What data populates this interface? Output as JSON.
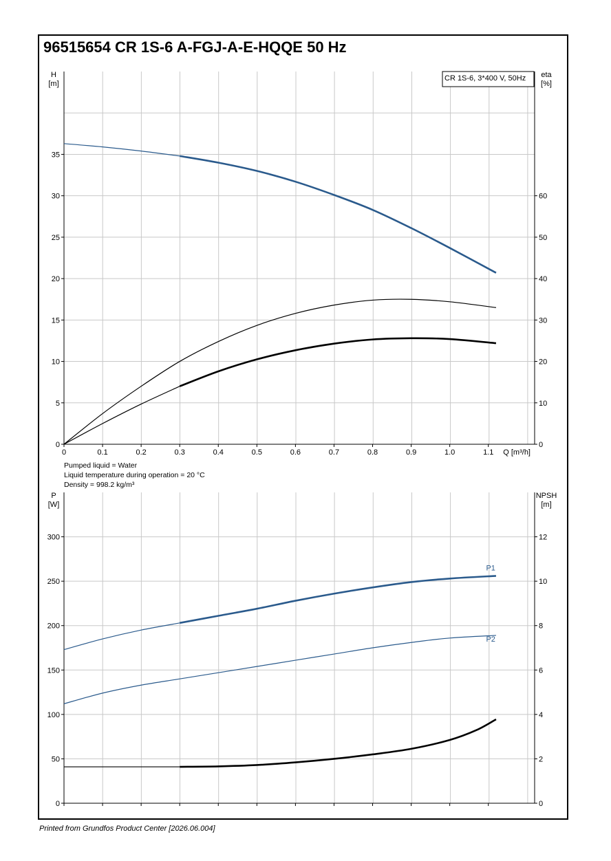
{
  "header": {
    "title": "96515654 CR 1S-6 A-FGJ-A-E-HQQE 50 Hz"
  },
  "notes": {
    "line1": "Pumped liquid = Water",
    "line2": "Liquid temperature during operation = 20 °C",
    "line3": "Density = 998.2 kg/m³"
  },
  "footer": {
    "text": "Printed from Grundfos Product Center [2026.06.004]"
  },
  "colors": {
    "blue": "#2a5a8c",
    "black": "#000000",
    "grid": "#c8c8c8"
  },
  "chart_data": [
    {
      "type": "line",
      "legend_box": "CR 1S-6, 3*400 V, 50Hz",
      "x_label": "Q [m³/h]",
      "x_ticks": [
        0,
        0.1,
        0.2,
        0.3,
        0.4,
        0.5,
        0.6,
        0.7,
        0.8,
        0.9,
        1.0,
        1.1
      ],
      "x_tick_labels": [
        "0",
        "0.1",
        "0.2",
        "0.3",
        "0.4",
        "0.5",
        "0.6",
        "0.7",
        "0.8",
        "0.9",
        "1.0",
        "1.1"
      ],
      "xlim": [
        0,
        1.22
      ],
      "y_left": {
        "label_top": "H",
        "label_unit": "[m]",
        "lim": [
          0,
          45
        ],
        "ticks": [
          0,
          5,
          10,
          15,
          20,
          25,
          30,
          35
        ]
      },
      "y_right": {
        "label_top": "eta",
        "label_unit": "[%]",
        "lim": [
          0,
          90
        ],
        "ticks": [
          0,
          10,
          20,
          30,
          40,
          50,
          60
        ]
      },
      "grid": true,
      "series": [
        {
          "axis": "left",
          "color": "blue",
          "thin_until": 0.3,
          "x": [
            0,
            0.1,
            0.2,
            0.3,
            0.4,
            0.5,
            0.6,
            0.7,
            0.8,
            0.9,
            1.0,
            1.12
          ],
          "y": [
            36.3,
            35.9,
            35.4,
            34.8,
            34.0,
            33.0,
            31.7,
            30.1,
            28.3,
            26.1,
            23.7,
            20.7
          ]
        },
        {
          "axis": "right",
          "color": "black",
          "thin_until": 1.12,
          "x": [
            0,
            0.1,
            0.2,
            0.3,
            0.4,
            0.5,
            0.6,
            0.7,
            0.8,
            0.9,
            1.0,
            1.12
          ],
          "y": [
            0,
            7.4,
            14.0,
            20.0,
            24.8,
            28.7,
            31.6,
            33.6,
            34.8,
            35.0,
            34.4,
            33.0
          ]
        },
        {
          "axis": "right",
          "color": "black",
          "thin_until": 0.3,
          "x": [
            0,
            0.1,
            0.2,
            0.3,
            0.4,
            0.5,
            0.6,
            0.7,
            0.8,
            0.9,
            1.0,
            1.12
          ],
          "y": [
            0,
            5.0,
            9.7,
            14.0,
            17.6,
            20.5,
            22.7,
            24.3,
            25.3,
            25.6,
            25.4,
            24.4
          ]
        }
      ]
    },
    {
      "type": "line",
      "x_ticks": [
        0,
        0.1,
        0.2,
        0.3,
        0.4,
        0.5,
        0.6,
        0.7,
        0.8,
        0.9,
        1.0,
        1.1
      ],
      "xlim": [
        0,
        1.22
      ],
      "y_left": {
        "label_top": "P",
        "label_unit": "[W]",
        "lim": [
          0,
          350
        ],
        "ticks": [
          0,
          50,
          100,
          150,
          200,
          250,
          300
        ]
      },
      "y_right": {
        "label_top": "NPSH",
        "label_unit": "[m]",
        "lim": [
          0,
          14
        ],
        "ticks": [
          0,
          2,
          4,
          6,
          8,
          10,
          12
        ]
      },
      "grid": true,
      "series": [
        {
          "name": "P1",
          "axis": "left",
          "color": "blue",
          "thin_until": 0.3,
          "x": [
            0,
            0.1,
            0.2,
            0.3,
            0.4,
            0.5,
            0.6,
            0.7,
            0.8,
            0.9,
            1.0,
            1.12
          ],
          "y": [
            173,
            185,
            195,
            203,
            211,
            219,
            228,
            236,
            243,
            249,
            253,
            256
          ]
        },
        {
          "name": "P2",
          "axis": "left",
          "color": "blue",
          "thin_until": 1.12,
          "x": [
            0,
            0.1,
            0.2,
            0.3,
            0.4,
            0.5,
            0.6,
            0.7,
            0.8,
            0.9,
            1.0,
            1.12
          ],
          "y": [
            112,
            124,
            133,
            140,
            147,
            154,
            161,
            168,
            175,
            181,
            186,
            189
          ]
        },
        {
          "axis": "right",
          "color": "black",
          "thin_until": 0.3,
          "x": [
            0,
            0.1,
            0.2,
            0.3,
            0.4,
            0.5,
            0.6,
            0.7,
            0.8,
            0.9,
            1.0,
            1.07,
            1.12
          ],
          "y": [
            1.64,
            1.64,
            1.64,
            1.64,
            1.66,
            1.72,
            1.84,
            2.0,
            2.2,
            2.45,
            2.85,
            3.3,
            3.78
          ]
        }
      ]
    }
  ]
}
